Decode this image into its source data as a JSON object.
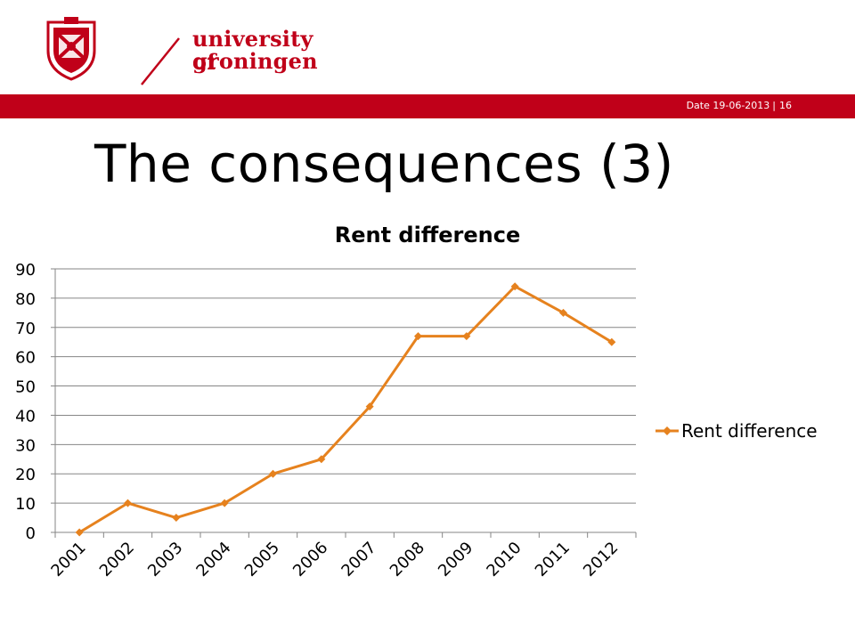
{
  "header": {
    "logo_line1": "university of",
    "logo_line2": "groningen",
    "date_label": "Date 19-06-2013",
    "separator": "|",
    "page_number": "16"
  },
  "slide": {
    "title": "The consequences (3)"
  },
  "colors": {
    "brand_red": "#c00019",
    "series_orange": "#e6821e",
    "grid": "#868686"
  },
  "chart_data": {
    "type": "line",
    "title": "Rent difference",
    "xlabel": "",
    "ylabel": "",
    "categories": [
      "2001",
      "2002",
      "2003",
      "2004",
      "2005",
      "2006",
      "2007",
      "2008",
      "2009",
      "2010",
      "2011",
      "2012"
    ],
    "series": [
      {
        "name": "Rent difference",
        "values": [
          0,
          10,
          5,
          10,
          20,
          25,
          43,
          67,
          67,
          84,
          75,
          65
        ]
      }
    ],
    "ylim": [
      0,
      90
    ],
    "yticks": [
      0,
      10,
      20,
      30,
      40,
      50,
      60,
      70,
      80,
      90
    ],
    "grid": true,
    "legend_position": "right",
    "marker": "diamond"
  }
}
